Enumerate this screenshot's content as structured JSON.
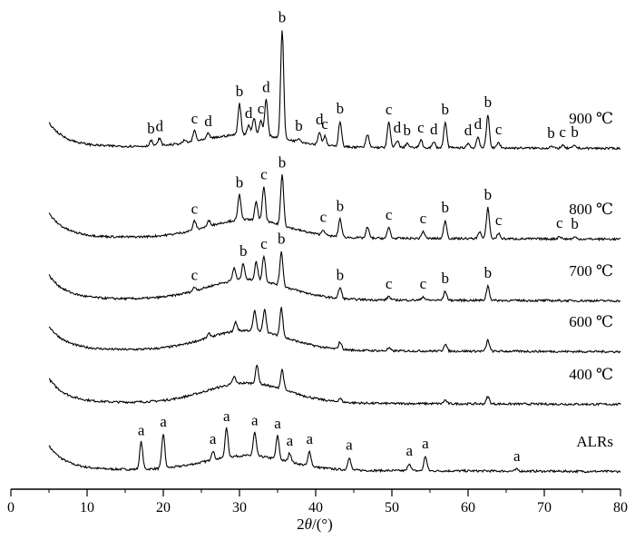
{
  "chart_data": {
    "type": "line",
    "title": "",
    "xlabel": "2θ/(°)",
    "ylabel": "",
    "xlim": [
      0,
      80
    ],
    "x_ticks": [
      0,
      10,
      20,
      30,
      40,
      50,
      60,
      70,
      80
    ],
    "y_ticks_shown": false,
    "legend": "none (curves labeled at right end)",
    "series": [
      {
        "name": "ALRs",
        "peaks": [
          {
            "x": 17.1,
            "label": "a"
          },
          {
            "x": 20.0,
            "label": "a"
          },
          {
            "x": 26.5,
            "label": "a"
          },
          {
            "x": 28.3,
            "label": "a"
          },
          {
            "x": 32.0,
            "label": "a"
          },
          {
            "x": 35.0,
            "label": "a"
          },
          {
            "x": 36.6,
            "label": "a"
          },
          {
            "x": 39.2,
            "label": "a"
          },
          {
            "x": 44.4,
            "label": "a"
          },
          {
            "x": 52.3,
            "label": "a"
          },
          {
            "x": 54.4,
            "label": "a"
          },
          {
            "x": 66.4,
            "label": "a"
          }
        ]
      },
      {
        "name": "400 ℃",
        "peaks": []
      },
      {
        "name": "600 ℃",
        "peaks": []
      },
      {
        "name": "700 ℃",
        "peaks": [
          {
            "x": 24.1,
            "label": "c"
          },
          {
            "x": 30.5,
            "label": "b"
          },
          {
            "x": 33.2,
            "label": "c"
          },
          {
            "x": 35.5,
            "label": "b"
          },
          {
            "x": 43.2,
            "label": "b"
          },
          {
            "x": 49.6,
            "label": "c"
          },
          {
            "x": 54.1,
            "label": "c"
          },
          {
            "x": 57.0,
            "label": "b"
          },
          {
            "x": 62.6,
            "label": "b"
          }
        ]
      },
      {
        "name": "800 ℃",
        "peaks": [
          {
            "x": 24.1,
            "label": "c"
          },
          {
            "x": 30.0,
            "label": "b"
          },
          {
            "x": 33.2,
            "label": "c"
          },
          {
            "x": 35.6,
            "label": "b"
          },
          {
            "x": 41.0,
            "label": "c"
          },
          {
            "x": 43.2,
            "label": "b"
          },
          {
            "x": 49.6,
            "label": "c"
          },
          {
            "x": 54.1,
            "label": "c"
          },
          {
            "x": 57.0,
            "label": "b"
          },
          {
            "x": 62.6,
            "label": "b"
          },
          {
            "x": 64.0,
            "label": "c"
          },
          {
            "x": 72.0,
            "label": "c"
          },
          {
            "x": 74.0,
            "label": "b"
          }
        ]
      },
      {
        "name": "900 ℃",
        "peaks": [
          {
            "x": 18.4,
            "label": "b"
          },
          {
            "x": 19.5,
            "label": "d"
          },
          {
            "x": 24.1,
            "label": "c"
          },
          {
            "x": 25.9,
            "label": "d"
          },
          {
            "x": 30.0,
            "label": "b"
          },
          {
            "x": 31.2,
            "label": "d"
          },
          {
            "x": 32.8,
            "label": "c"
          },
          {
            "x": 33.5,
            "label": "d"
          },
          {
            "x": 35.6,
            "label": "b"
          },
          {
            "x": 37.8,
            "label": "b"
          },
          {
            "x": 40.5,
            "label": "d"
          },
          {
            "x": 41.2,
            "label": "c"
          },
          {
            "x": 43.2,
            "label": "b"
          },
          {
            "x": 49.6,
            "label": "c"
          },
          {
            "x": 50.7,
            "label": "d"
          },
          {
            "x": 52.0,
            "label": "b"
          },
          {
            "x": 53.8,
            "label": "c"
          },
          {
            "x": 55.5,
            "label": "d"
          },
          {
            "x": 57.0,
            "label": "b"
          },
          {
            "x": 60.0,
            "label": "d"
          },
          {
            "x": 61.3,
            "label": "d"
          },
          {
            "x": 62.6,
            "label": "b"
          },
          {
            "x": 64.0,
            "label": "c"
          },
          {
            "x": 70.9,
            "label": "b"
          },
          {
            "x": 72.4,
            "label": "c"
          },
          {
            "x": 74.0,
            "label": "b"
          }
        ]
      }
    ]
  }
}
